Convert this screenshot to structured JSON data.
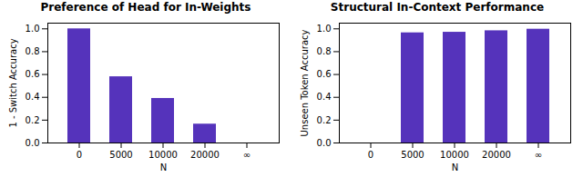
{
  "chart_data": [
    {
      "type": "bar",
      "title": "Preference of Head for In-Weights",
      "xlabel": "N",
      "ylabel": "1 - Switch Accuracy",
      "categories": [
        "0",
        "5000",
        "10000",
        "20000",
        "∞"
      ],
      "values": [
        1.0,
        0.58,
        0.39,
        0.165,
        0.0
      ],
      "color": "#5533bb",
      "ylim": [
        0.0,
        1.05
      ],
      "yticks": [
        {
          "value": 0.0,
          "label": "0.0"
        },
        0.2,
        0.4,
        0.6,
        0.8,
        {
          "value": 1.0,
          "label": "1.0"
        }
      ]
    },
    {
      "type": "bar",
      "title": "Structural In-Context Performance",
      "xlabel": "N",
      "ylabel": "Unseen Token Accuracy",
      "categories": [
        "0",
        "5000",
        "10000",
        "20000",
        "∞"
      ],
      "values": [
        0.0,
        0.965,
        0.97,
        0.983,
        0.997
      ],
      "color": "#5533bb",
      "ylim": [
        0.0,
        1.05
      ],
      "yticks": [
        {
          "value": 0.0,
          "label": "0.0"
        },
        0.2,
        0.4,
        0.6,
        0.8,
        {
          "value": 1.0,
          "label": "1.0"
        }
      ]
    }
  ]
}
